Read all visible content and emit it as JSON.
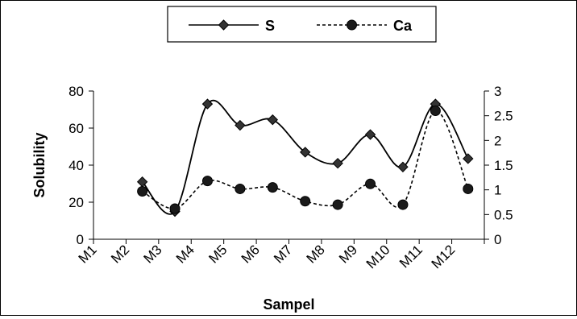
{
  "chart_data": {
    "type": "line",
    "categories": [
      "M1",
      "M2",
      "M3",
      "M4",
      "M5",
      "M6",
      "M7",
      "M8",
      "M9",
      "M10",
      "M11",
      "M12"
    ],
    "xlabel": "Sampel",
    "ylabel": "Solubility",
    "ylim": [
      0,
      80
    ],
    "y_ticks": [
      "0",
      "20",
      "40",
      "60",
      "80"
    ],
    "y2lim": [
      0,
      3
    ],
    "y2_ticks": [
      "0",
      "0.5",
      "1",
      "1.5",
      "2",
      "2.5",
      "3"
    ],
    "grid": false,
    "legend_position": "top-center",
    "series": [
      {
        "name": "S",
        "axis": "left",
        "marker": "diamond",
        "line_style": "solid",
        "color": "#000000",
        "values": [
          null,
          31,
          15,
          73,
          61.5,
          64.5,
          47,
          41,
          56.5,
          39,
          73,
          43.5
        ]
      },
      {
        "name": "Ca",
        "axis": "right",
        "marker": "circle",
        "line_style": "dashed",
        "color": "#000000",
        "values": [
          null,
          0.97,
          0.62,
          1.18,
          1.02,
          1.05,
          0.77,
          0.7,
          1.12,
          0.7,
          2.6,
          1.02
        ]
      }
    ]
  }
}
